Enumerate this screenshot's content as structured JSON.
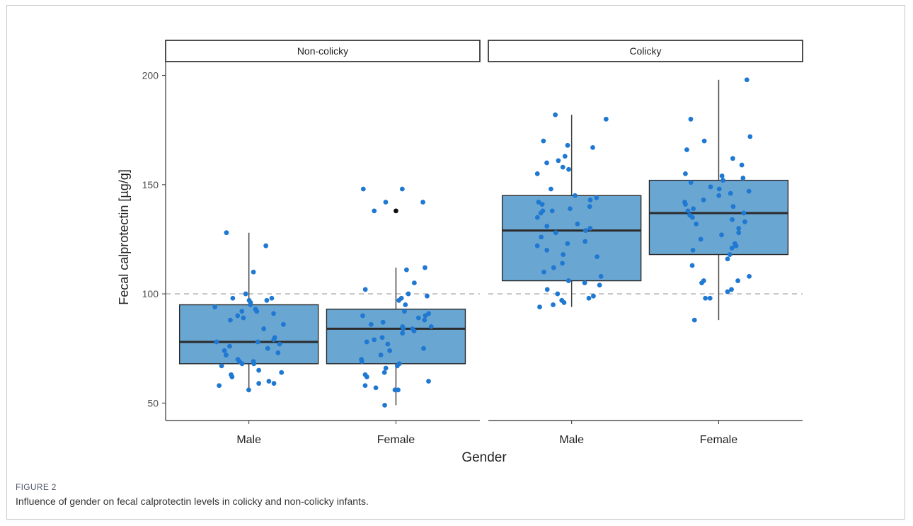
{
  "figure": {
    "label": "FIGURE 2",
    "caption": "Influence of gender on fecal calprotectin levels in colicky and non-colicky infants."
  },
  "chart_data": {
    "type": "boxplot",
    "xlabel": "Gender",
    "ylabel": "Fecal calprotectin [µg/g]",
    "ylim": [
      42,
      207
    ],
    "yticks": [
      50,
      100,
      150,
      200
    ],
    "reference_line": 100,
    "grid": false,
    "colors": {
      "box": "#6aa6d2",
      "point": "#1f78d1",
      "outlier": "#111111",
      "refline": "#b8b8b8"
    },
    "panels": [
      {
        "title": "Non-colicky",
        "categories": [
          "Male",
          "Female"
        ],
        "boxes": [
          {
            "category": "Male",
            "min": 56,
            "q1": 68,
            "median": 78,
            "q3": 95,
            "max": 128,
            "outliers": [],
            "points": [
              128,
              122,
              110,
              100,
              98,
              98,
              97,
              97,
              96,
              95,
              94,
              93,
              92,
              92,
              91,
              90,
              89,
              88,
              86,
              84,
              80,
              79,
              78,
              78,
              77,
              76,
              75,
              74,
              73,
              72,
              70,
              69,
              69,
              68,
              68,
              67,
              65,
              64,
              63,
              62,
              60,
              59,
              59,
              58,
              56
            ]
          },
          {
            "category": "Female",
            "min": 49,
            "q1": 68,
            "median": 84,
            "q3": 93,
            "max": 112,
            "outliers": [
              138
            ],
            "points": [
              148,
              148,
              142,
              142,
              138,
              112,
              111,
              105,
              102,
              100,
              99,
              98,
              97,
              95,
              92,
              91,
              90,
              90,
              89,
              88,
              87,
              86,
              85,
              85,
              84,
              84,
              83,
              82,
              80,
              79,
              78,
              77,
              75,
              74,
              72,
              70,
              69,
              68,
              67,
              66,
              64,
              63,
              62,
              60,
              58,
              57,
              56,
              56,
              49
            ]
          }
        ]
      },
      {
        "title": "Colicky",
        "categories": [
          "Male",
          "Female"
        ],
        "boxes": [
          {
            "category": "Male",
            "min": 94,
            "q1": 106,
            "median": 129,
            "q3": 145,
            "max": 182,
            "outliers": [],
            "points": [
              182,
              180,
              170,
              168,
              167,
              163,
              161,
              160,
              158,
              157,
              155,
              148,
              145,
              144,
              143,
              142,
              141,
              140,
              139,
              138,
              138,
              137,
              135,
              132,
              131,
              130,
              129,
              128,
              126,
              124,
              123,
              122,
              120,
              118,
              117,
              114,
              112,
              110,
              108,
              106,
              105,
              104,
              102,
              100,
              99,
              98,
              97,
              96,
              95,
              94
            ]
          },
          {
            "category": "Female",
            "min": 88,
            "q1": 118,
            "median": 137,
            "q3": 152,
            "max": 198,
            "outliers": [],
            "points": [
              198,
              180,
              172,
              170,
              166,
              162,
              159,
              155,
              154,
              153,
              152,
              151,
              149,
              148,
              147,
              146,
              145,
              143,
              142,
              141,
              140,
              139,
              138,
              137,
              136,
              135,
              134,
              133,
              132,
              130,
              128,
              127,
              125,
              123,
              122,
              121,
              120,
              118,
              116,
              113,
              108,
              106,
              106,
              105,
              102,
              101,
              98,
              98,
              88
            ]
          }
        ]
      }
    ]
  }
}
